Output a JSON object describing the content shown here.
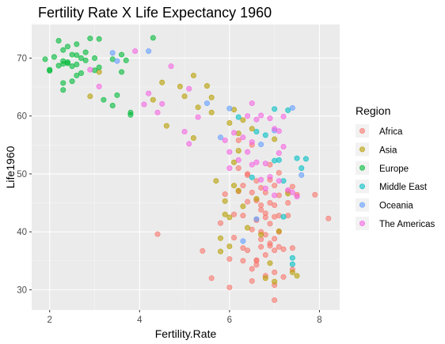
{
  "chart_data": {
    "type": "scatter",
    "title": "Fertility Rate X Life Expectancy 1960",
    "xlabel": "Fertility.Rate",
    "ylabel": "Life1960",
    "xlim": [
      1.6,
      8.45
    ],
    "ylim": [
      26.5,
      75.8
    ],
    "x_ticks": [
      2,
      4,
      6,
      8
    ],
    "y_ticks": [
      30,
      40,
      50,
      60,
      70
    ],
    "grid": true,
    "legend_title": "Region",
    "legend_position": "right",
    "series": [
      {
        "name": "Africa",
        "color": "#F8766D",
        "points": [
          [
            5.4,
            36.7
          ],
          [
            5.6,
            32.0
          ],
          [
            5.8,
            41.5
          ],
          [
            5.9,
            46.5
          ],
          [
            6.0,
            35.3
          ],
          [
            6.0,
            30.4
          ],
          [
            6.1,
            39.0
          ],
          [
            6.1,
            43.0
          ],
          [
            6.2,
            47.0
          ],
          [
            6.2,
            51.0
          ],
          [
            6.3,
            35.0
          ],
          [
            6.3,
            37.2
          ],
          [
            6.3,
            42.8
          ],
          [
            6.3,
            48.0
          ],
          [
            6.4,
            36.8
          ],
          [
            6.4,
            45.2
          ],
          [
            6.4,
            50.0
          ],
          [
            6.5,
            31.5
          ],
          [
            6.5,
            33.6
          ],
          [
            6.5,
            40.4
          ],
          [
            6.5,
            46.8
          ],
          [
            6.5,
            55.0
          ],
          [
            6.6,
            34.3
          ],
          [
            6.6,
            35.0
          ],
          [
            6.6,
            42.0
          ],
          [
            6.6,
            45.4
          ],
          [
            6.6,
            48.8
          ],
          [
            6.7,
            37.4
          ],
          [
            6.7,
            40.0
          ],
          [
            6.7,
            44.6
          ],
          [
            6.7,
            47.6
          ],
          [
            6.7,
            43.8
          ],
          [
            6.8,
            32.4
          ],
          [
            6.8,
            36.0
          ],
          [
            6.8,
            39.5
          ],
          [
            6.8,
            43.2
          ],
          [
            6.8,
            46.8
          ],
          [
            6.8,
            42.5
          ],
          [
            6.9,
            38.0
          ],
          [
            6.9,
            41.4
          ],
          [
            6.9,
            45.0
          ],
          [
            6.9,
            49.0
          ],
          [
            6.9,
            51.6
          ],
          [
            7.0,
            28.2
          ],
          [
            7.0,
            33.0
          ],
          [
            7.0,
            36.8
          ],
          [
            7.0,
            38.8
          ],
          [
            7.0,
            42.6
          ],
          [
            7.0,
            44.6
          ],
          [
            7.0,
            48.0
          ],
          [
            7.1,
            37.4
          ],
          [
            7.1,
            40.0
          ],
          [
            7.1,
            42.8
          ],
          [
            7.1,
            46.3
          ],
          [
            7.1,
            50.2
          ],
          [
            7.2,
            32.2
          ],
          [
            7.2,
            37.0
          ],
          [
            7.3,
            42.8
          ],
          [
            7.3,
            45.0
          ],
          [
            7.3,
            47.0
          ],
          [
            7.4,
            33.5
          ],
          [
            7.4,
            37.2
          ],
          [
            7.4,
            47.8
          ],
          [
            7.5,
            46.4
          ],
          [
            7.9,
            46.4
          ],
          [
            8.2,
            42.3
          ],
          [
            4.4,
            39.6
          ],
          [
            6.2,
            55.8
          ],
          [
            6.6,
            35.1
          ],
          [
            6.9,
            37.6
          ],
          [
            7.0,
            30.8
          ],
          [
            6.4,
            49.8
          ],
          [
            6.7,
            38.7
          ]
        ]
      },
      {
        "name": "Asia",
        "color": "#B79F00",
        "points": [
          [
            2.9,
            63.4
          ],
          [
            3.1,
            67.6
          ],
          [
            4.3,
            62.8
          ],
          [
            4.5,
            65.8
          ],
          [
            4.6,
            58.3
          ],
          [
            4.9,
            65.1
          ],
          [
            5.0,
            63.4
          ],
          [
            5.2,
            67.0
          ],
          [
            5.2,
            56.2
          ],
          [
            5.3,
            61.5
          ],
          [
            5.5,
            65.2
          ],
          [
            5.6,
            63.2
          ],
          [
            5.6,
            60.6
          ],
          [
            5.7,
            48.8
          ],
          [
            5.8,
            36.6
          ],
          [
            5.9,
            45.3
          ],
          [
            5.9,
            43.0
          ],
          [
            6.0,
            37.5
          ],
          [
            6.0,
            42.5
          ],
          [
            6.1,
            61.1
          ],
          [
            6.1,
            48.0
          ],
          [
            6.2,
            57.0
          ],
          [
            6.2,
            54.0
          ],
          [
            6.3,
            59.3
          ],
          [
            6.3,
            44.4
          ],
          [
            6.4,
            40.7
          ],
          [
            6.5,
            57.8
          ],
          [
            6.6,
            45.7
          ],
          [
            6.7,
            39.5
          ],
          [
            6.8,
            32.0
          ],
          [
            6.9,
            34.6
          ],
          [
            7.0,
            31.4
          ],
          [
            7.1,
            40.1
          ],
          [
            7.3,
            46.6
          ],
          [
            7.4,
            33.0
          ],
          [
            7.5,
            32.4
          ],
          [
            6.0,
            58.8
          ],
          [
            5.8,
            38.9
          ],
          [
            6.2,
            47.1
          ],
          [
            6.1,
            52.0
          ],
          [
            7.0,
            56.0
          ]
        ]
      },
      {
        "name": "Europe",
        "color": "#00BA38",
        "points": [
          [
            1.9,
            69.8
          ],
          [
            2.0,
            68.0
          ],
          [
            2.0,
            67.8
          ],
          [
            2.1,
            70.2
          ],
          [
            2.2,
            73.0
          ],
          [
            2.2,
            68.7
          ],
          [
            2.3,
            69.0
          ],
          [
            2.3,
            69.5
          ],
          [
            2.3,
            71.4
          ],
          [
            2.3,
            65.7
          ],
          [
            2.3,
            64.5
          ],
          [
            2.4,
            69.3
          ],
          [
            2.4,
            72.0
          ],
          [
            2.5,
            66.0
          ],
          [
            2.5,
            68.6
          ],
          [
            2.5,
            70.6
          ],
          [
            2.6,
            70.5
          ],
          [
            2.6,
            68.9
          ],
          [
            2.6,
            72.4
          ],
          [
            2.7,
            70.0
          ],
          [
            2.7,
            67.4
          ],
          [
            2.8,
            71.0
          ],
          [
            2.8,
            69.6
          ],
          [
            2.9,
            73.4
          ],
          [
            3.0,
            70.0
          ],
          [
            3.1,
            68.4
          ],
          [
            3.1,
            73.3
          ],
          [
            3.2,
            62.8
          ],
          [
            3.4,
            61.8
          ],
          [
            3.4,
            69.8
          ],
          [
            3.5,
            63.6
          ],
          [
            3.6,
            67.6
          ],
          [
            3.6,
            70.6
          ],
          [
            3.7,
            69.6
          ],
          [
            3.8,
            60.2
          ],
          [
            3.8,
            60.6
          ],
          [
            4.3,
            73.5
          ],
          [
            2.6,
            67.0
          ],
          [
            3.0,
            67.9
          ],
          [
            2.4,
            69.1
          ]
        ]
      },
      {
        "name": "Middle East",
        "color": "#00BFC4",
        "points": [
          [
            6.2,
            59.8
          ],
          [
            6.5,
            49.4
          ],
          [
            6.6,
            57.3
          ],
          [
            6.8,
            56.7
          ],
          [
            7.0,
            52.3
          ],
          [
            7.0,
            61.2
          ],
          [
            7.1,
            52.4
          ],
          [
            7.2,
            48.8
          ],
          [
            7.2,
            42.6
          ],
          [
            7.3,
            61.0
          ],
          [
            7.4,
            35.5
          ],
          [
            7.4,
            34.4
          ],
          [
            7.5,
            52.7
          ],
          [
            7.6,
            51.0
          ],
          [
            7.7,
            52.6
          ]
        ]
      },
      {
        "name": "Oceania",
        "color": "#619CFF",
        "points": [
          [
            3.4,
            70.9
          ],
          [
            3.5,
            69.5
          ],
          [
            4.2,
            71.2
          ],
          [
            5.5,
            62.2
          ],
          [
            5.8,
            56.3
          ],
          [
            6.0,
            61.3
          ],
          [
            6.3,
            38.4
          ],
          [
            6.7,
            55.1
          ],
          [
            6.6,
            42.2
          ],
          [
            7.0,
            57.5
          ],
          [
            7.4,
            61.4
          ],
          [
            7.6,
            49.8
          ]
        ]
      },
      {
        "name": "The Americas",
        "color": "#F564E3",
        "points": [
          [
            2.9,
            68.0
          ],
          [
            3.1,
            65.1
          ],
          [
            3.9,
            71.2
          ],
          [
            4.1,
            62.0
          ],
          [
            4.2,
            63.9
          ],
          [
            4.4,
            60.6
          ],
          [
            4.5,
            62.1
          ],
          [
            4.7,
            68.6
          ],
          [
            5.0,
            57.3
          ],
          [
            5.1,
            64.7
          ],
          [
            5.3,
            59.8
          ],
          [
            5.9,
            55.8
          ],
          [
            6.0,
            53.8
          ],
          [
            6.1,
            57.1
          ],
          [
            6.2,
            52.4
          ],
          [
            6.3,
            56.3
          ],
          [
            6.4,
            60.0
          ],
          [
            6.5,
            62.2
          ],
          [
            6.5,
            55.5
          ],
          [
            6.6,
            59.4
          ],
          [
            6.6,
            52.0
          ],
          [
            6.7,
            60.1
          ],
          [
            6.8,
            51.8
          ],
          [
            6.9,
            59.6
          ],
          [
            7.0,
            57.8
          ],
          [
            7.0,
            46.3
          ],
          [
            7.1,
            53.6
          ],
          [
            7.1,
            48.8
          ],
          [
            7.2,
            59.9
          ],
          [
            7.2,
            54.7
          ],
          [
            7.3,
            47.2
          ],
          [
            7.4,
            46.8
          ],
          [
            7.5,
            46.1
          ],
          [
            5.1,
            55.2
          ],
          [
            6.0,
            51.0
          ],
          [
            6.4,
            53.8
          ],
          [
            6.8,
            47.5
          ],
          [
            6.9,
            49.5
          ],
          [
            7.1,
            57.4
          ],
          [
            6.5,
            51.6
          ],
          [
            6.7,
            49.0
          ]
        ]
      }
    ]
  }
}
